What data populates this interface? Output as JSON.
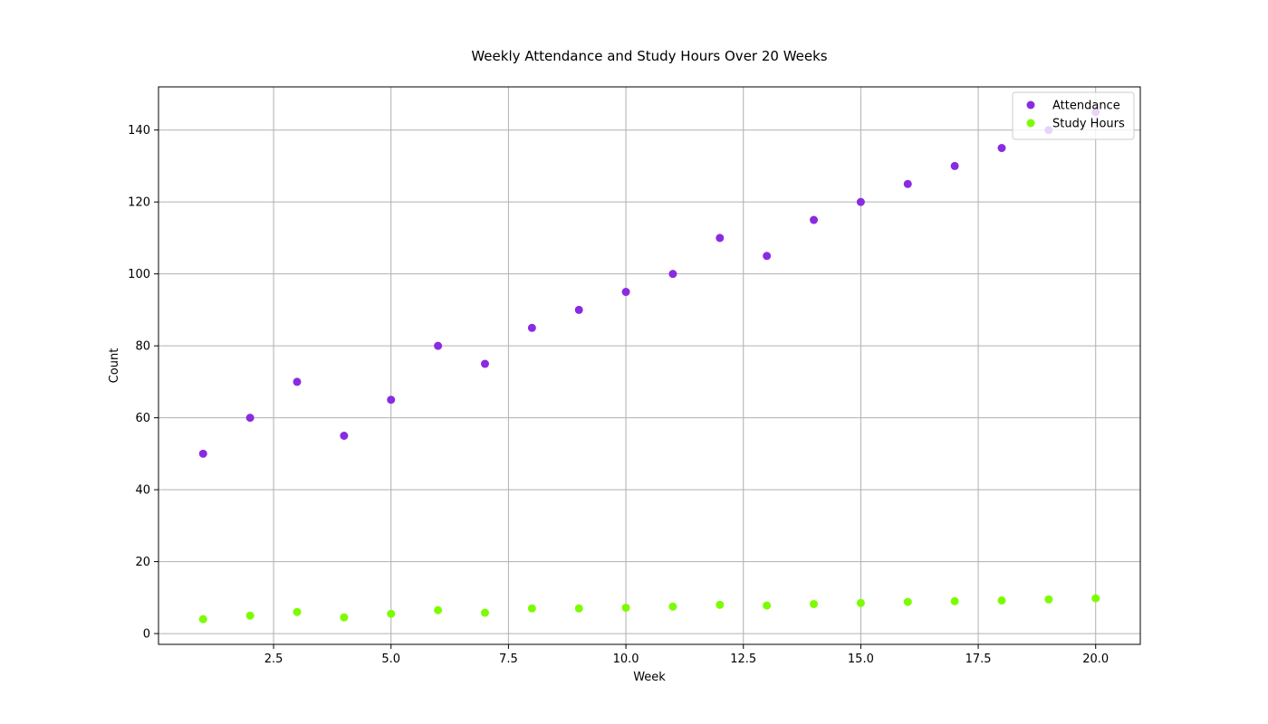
{
  "chart_data": {
    "type": "scatter",
    "title": "Weekly Attendance and Study Hours Over 20 Weeks",
    "xlabel": "Week",
    "ylabel": "Count",
    "xlim": [
      0.05,
      20.95
    ],
    "ylim": [
      -3,
      152
    ],
    "x_ticks": [
      2.5,
      5.0,
      7.5,
      10.0,
      12.5,
      15.0,
      17.5,
      20.0
    ],
    "x_tick_labels": [
      "2.5",
      "5.0",
      "7.5",
      "10.0",
      "12.5",
      "15.0",
      "17.5",
      "20.0"
    ],
    "y_ticks": [
      0,
      20,
      40,
      60,
      80,
      100,
      120,
      140
    ],
    "y_tick_labels": [
      "0",
      "20",
      "40",
      "60",
      "80",
      "100",
      "120",
      "140"
    ],
    "grid": true,
    "legend_position": "top-right",
    "x": [
      1,
      2,
      3,
      4,
      5,
      6,
      7,
      8,
      9,
      10,
      11,
      12,
      13,
      14,
      15,
      16,
      17,
      18,
      19,
      20
    ],
    "series": [
      {
        "name": "Attendance",
        "color": "#8a2be2",
        "values": [
          50,
          60,
          70,
          55,
          65,
          80,
          75,
          85,
          90,
          95,
          100,
          110,
          105,
          115,
          120,
          125,
          130,
          135,
          140,
          145
        ]
      },
      {
        "name": "Study Hours",
        "color": "#7cfc00",
        "values": [
          4,
          5,
          6,
          4.5,
          5.5,
          6.5,
          5.8,
          7,
          7,
          7.2,
          7.5,
          8,
          7.8,
          8.2,
          8.5,
          8.8,
          9,
          9.2,
          9.5,
          9.8
        ]
      }
    ]
  }
}
